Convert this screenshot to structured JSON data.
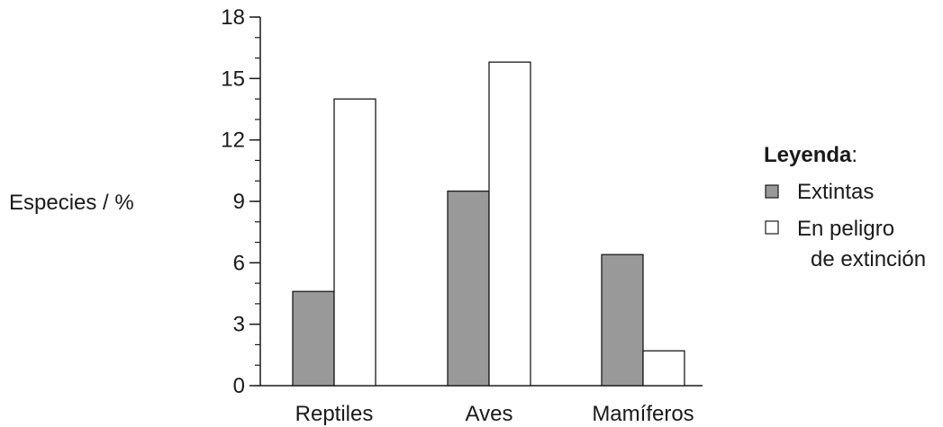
{
  "chart_data": {
    "type": "bar",
    "categories": [
      "Reptiles",
      "Aves",
      "Mamíferos"
    ],
    "series": [
      {
        "name": "Extintas",
        "values": [
          4.6,
          9.5,
          6.4
        ],
        "color": "#999999"
      },
      {
        "name": "En peligro de extinción",
        "values": [
          14.0,
          15.8,
          1.7
        ],
        "color": "#ffffff"
      }
    ],
    "ylabel": "Especies / %",
    "ylim": [
      0,
      18
    ],
    "yticks": [
      0,
      3,
      6,
      9,
      12,
      15,
      18
    ],
    "yticks_labels": [
      "0",
      "3",
      "6",
      "9",
      "12",
      "15",
      "18"
    ],
    "minor_tick_step": 1,
    "grid": false,
    "legend": {
      "title": "Leyenda",
      "title_suffix": ":",
      "placement": "right",
      "entries": [
        {
          "lines": [
            "Extintas"
          ]
        },
        {
          "lines": [
            "En peligro",
            "de extinción"
          ]
        }
      ]
    }
  }
}
